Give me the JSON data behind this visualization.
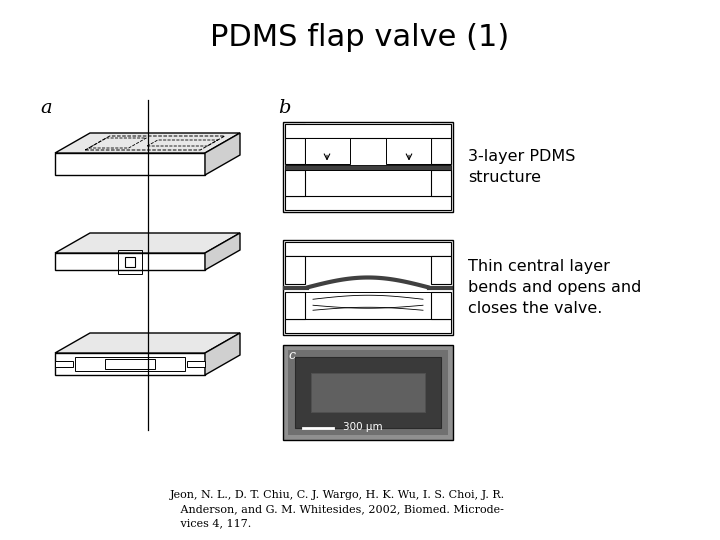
{
  "title": "PDMS flap valve (1)",
  "title_fontsize": 22,
  "title_fontweight": "normal",
  "bg_color": "#ffffff",
  "label_a": "a",
  "label_b": "b",
  "label_c": "c",
  "text1": "3-layer PDMS\nstructure",
  "text2": "Thin central layer\nbends and opens and\ncloses the valve.",
  "text_scale": "300 μm",
  "citation": "Jeon, N. L., D. T. Chiu, C. J. Wargo, H. K. Wu, I. S. Choi, J. R.\n   Anderson, and G. M. Whitesides, 2002, Biomed. Microde-\n   vices 4, 117.",
  "label_fontsize": 12,
  "text_fontsize": 11.5,
  "citation_fontsize": 8.0
}
